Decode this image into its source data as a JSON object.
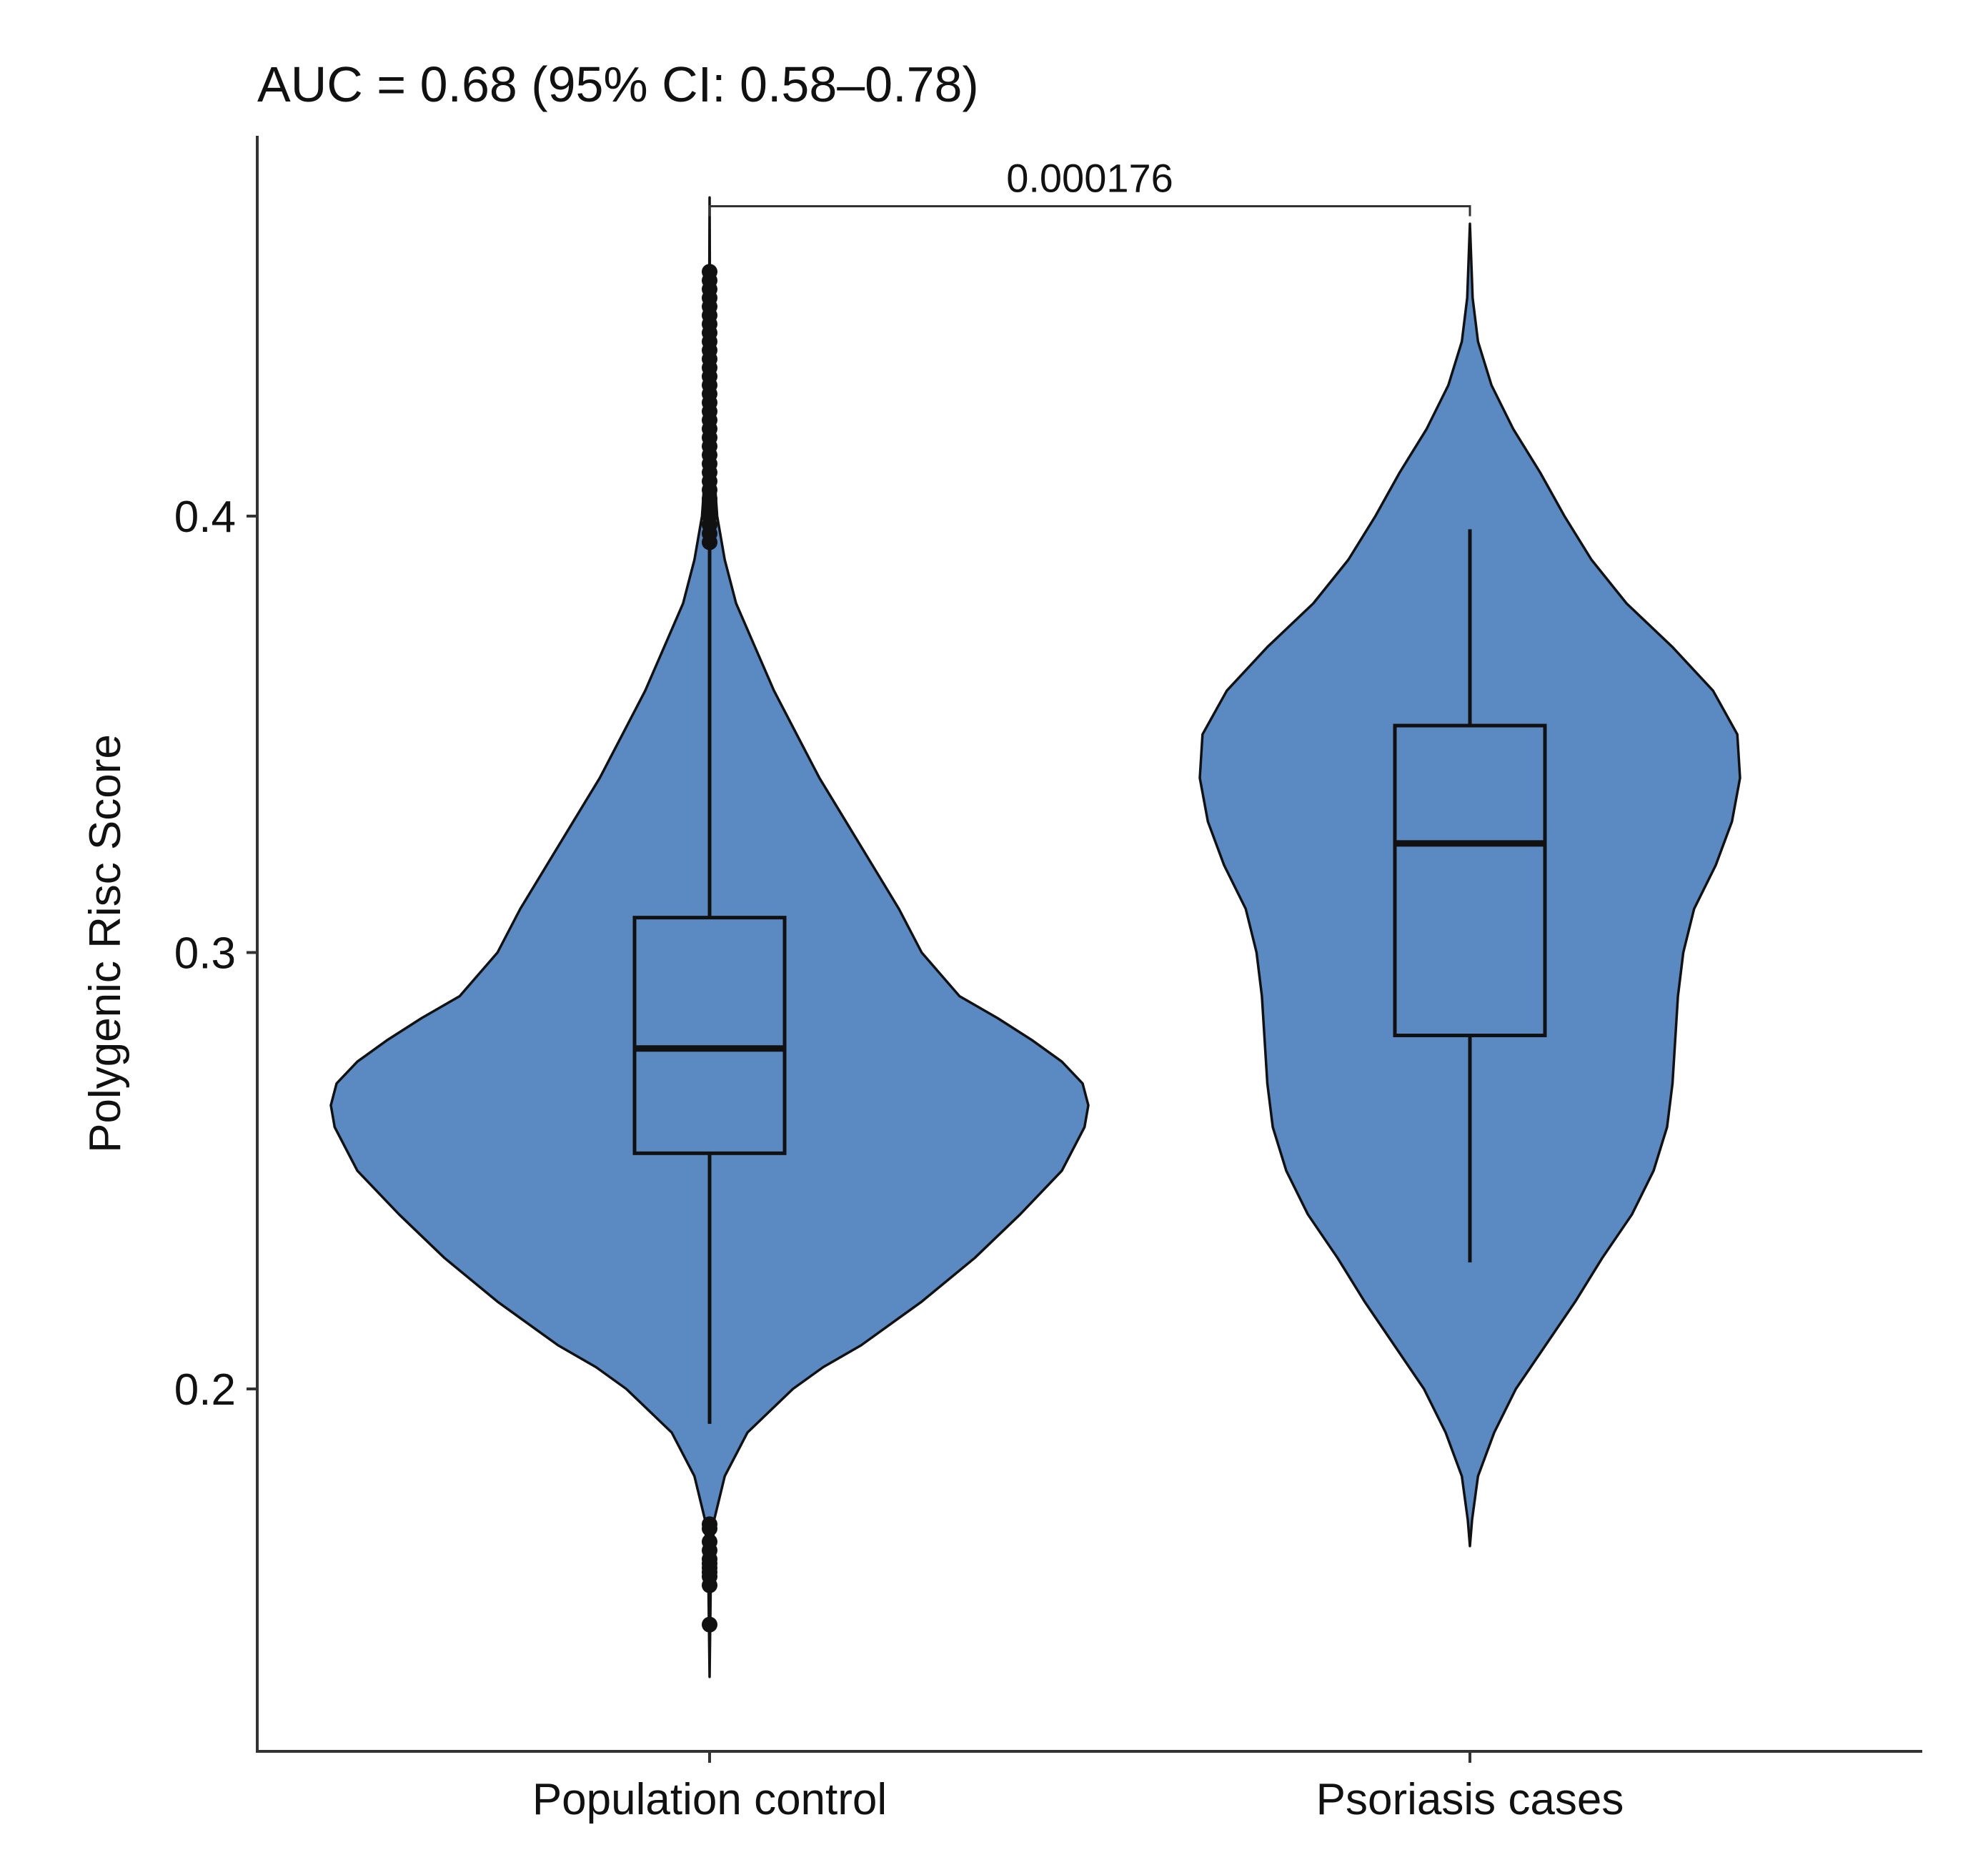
{
  "chart_data": {
    "type": "violin",
    "title": "AUC = 0.68 (95% CI: 0.58–0.78)",
    "xlabel": "",
    "ylabel": "Polygenic Risc Score",
    "categories": [
      "Population control",
      "Psoriasis cases"
    ],
    "yticks": [
      "0.2",
      "0.3",
      "0.4"
    ],
    "ylim": [
      0.13,
      0.485
    ],
    "fill_color": "#5B89C2",
    "outline_color": "#111111",
    "grid": false,
    "legend": "none",
    "groups": [
      {
        "name": "Population control",
        "box": {
          "lower_whisker": 0.192,
          "q1": 0.254,
          "median": 0.278,
          "q3": 0.308,
          "upper_whisker": 0.393
        },
        "outliers": [
          0.146,
          0.155,
          0.157,
          0.158,
          0.159,
          0.16,
          0.161,
          0.163,
          0.165,
          0.168,
          0.169,
          0.394,
          0.396,
          0.398,
          0.4,
          0.402,
          0.404,
          0.406,
          0.408,
          0.41,
          0.412,
          0.414,
          0.416,
          0.418,
          0.42,
          0.422,
          0.424,
          0.426,
          0.428,
          0.43,
          0.432,
          0.434,
          0.436,
          0.438,
          0.44,
          0.442,
          0.444,
          0.446,
          0.448,
          0.45,
          0.452,
          0.454,
          0.456
        ],
        "density_y": [
          0.134,
          0.155,
          0.17,
          0.18,
          0.19,
          0.2,
          0.205,
          0.21,
          0.22,
          0.23,
          0.24,
          0.25,
          0.26,
          0.265,
          0.27,
          0.275,
          0.28,
          0.285,
          0.29,
          0.3,
          0.31,
          0.32,
          0.33,
          0.34,
          0.35,
          0.36,
          0.37,
          0.38,
          0.39,
          0.4,
          0.41,
          0.42,
          0.43,
          0.44,
          0.45,
          0.473
        ],
        "density_w": [
          0.0,
          0.003,
          0.012,
          0.04,
          0.1,
          0.22,
          0.3,
          0.4,
          0.56,
          0.7,
          0.82,
          0.93,
          0.99,
          1.0,
          0.985,
          0.93,
          0.85,
          0.76,
          0.66,
          0.56,
          0.5,
          0.43,
          0.36,
          0.29,
          0.23,
          0.17,
          0.12,
          0.07,
          0.04,
          0.02,
          0.012,
          0.008,
          0.005,
          0.003,
          0.001,
          0.0
        ]
      },
      {
        "name": "Psoriasis cases",
        "box": {
          "lower_whisker": 0.229,
          "q1": 0.281,
          "median": 0.325,
          "q3": 0.352,
          "upper_whisker": 0.397
        },
        "outliers": [],
        "density_y": [
          0.164,
          0.17,
          0.18,
          0.19,
          0.2,
          0.21,
          0.22,
          0.23,
          0.24,
          0.25,
          0.26,
          0.27,
          0.28,
          0.29,
          0.3,
          0.31,
          0.32,
          0.33,
          0.34,
          0.35,
          0.36,
          0.37,
          0.38,
          0.39,
          0.4,
          0.41,
          0.42,
          0.43,
          0.44,
          0.45,
          0.467
        ],
        "density_w": [
          0.0,
          0.008,
          0.03,
          0.09,
          0.17,
          0.28,
          0.39,
          0.49,
          0.6,
          0.68,
          0.73,
          0.75,
          0.76,
          0.77,
          0.79,
          0.83,
          0.91,
          0.97,
          1.0,
          0.99,
          0.9,
          0.75,
          0.58,
          0.45,
          0.35,
          0.26,
          0.16,
          0.08,
          0.03,
          0.01,
          0.0
        ]
      }
    ],
    "comparison": {
      "groups": [
        "Population control",
        "Psoriasis cases"
      ],
      "label": "0.000176",
      "y": 0.471
    }
  }
}
